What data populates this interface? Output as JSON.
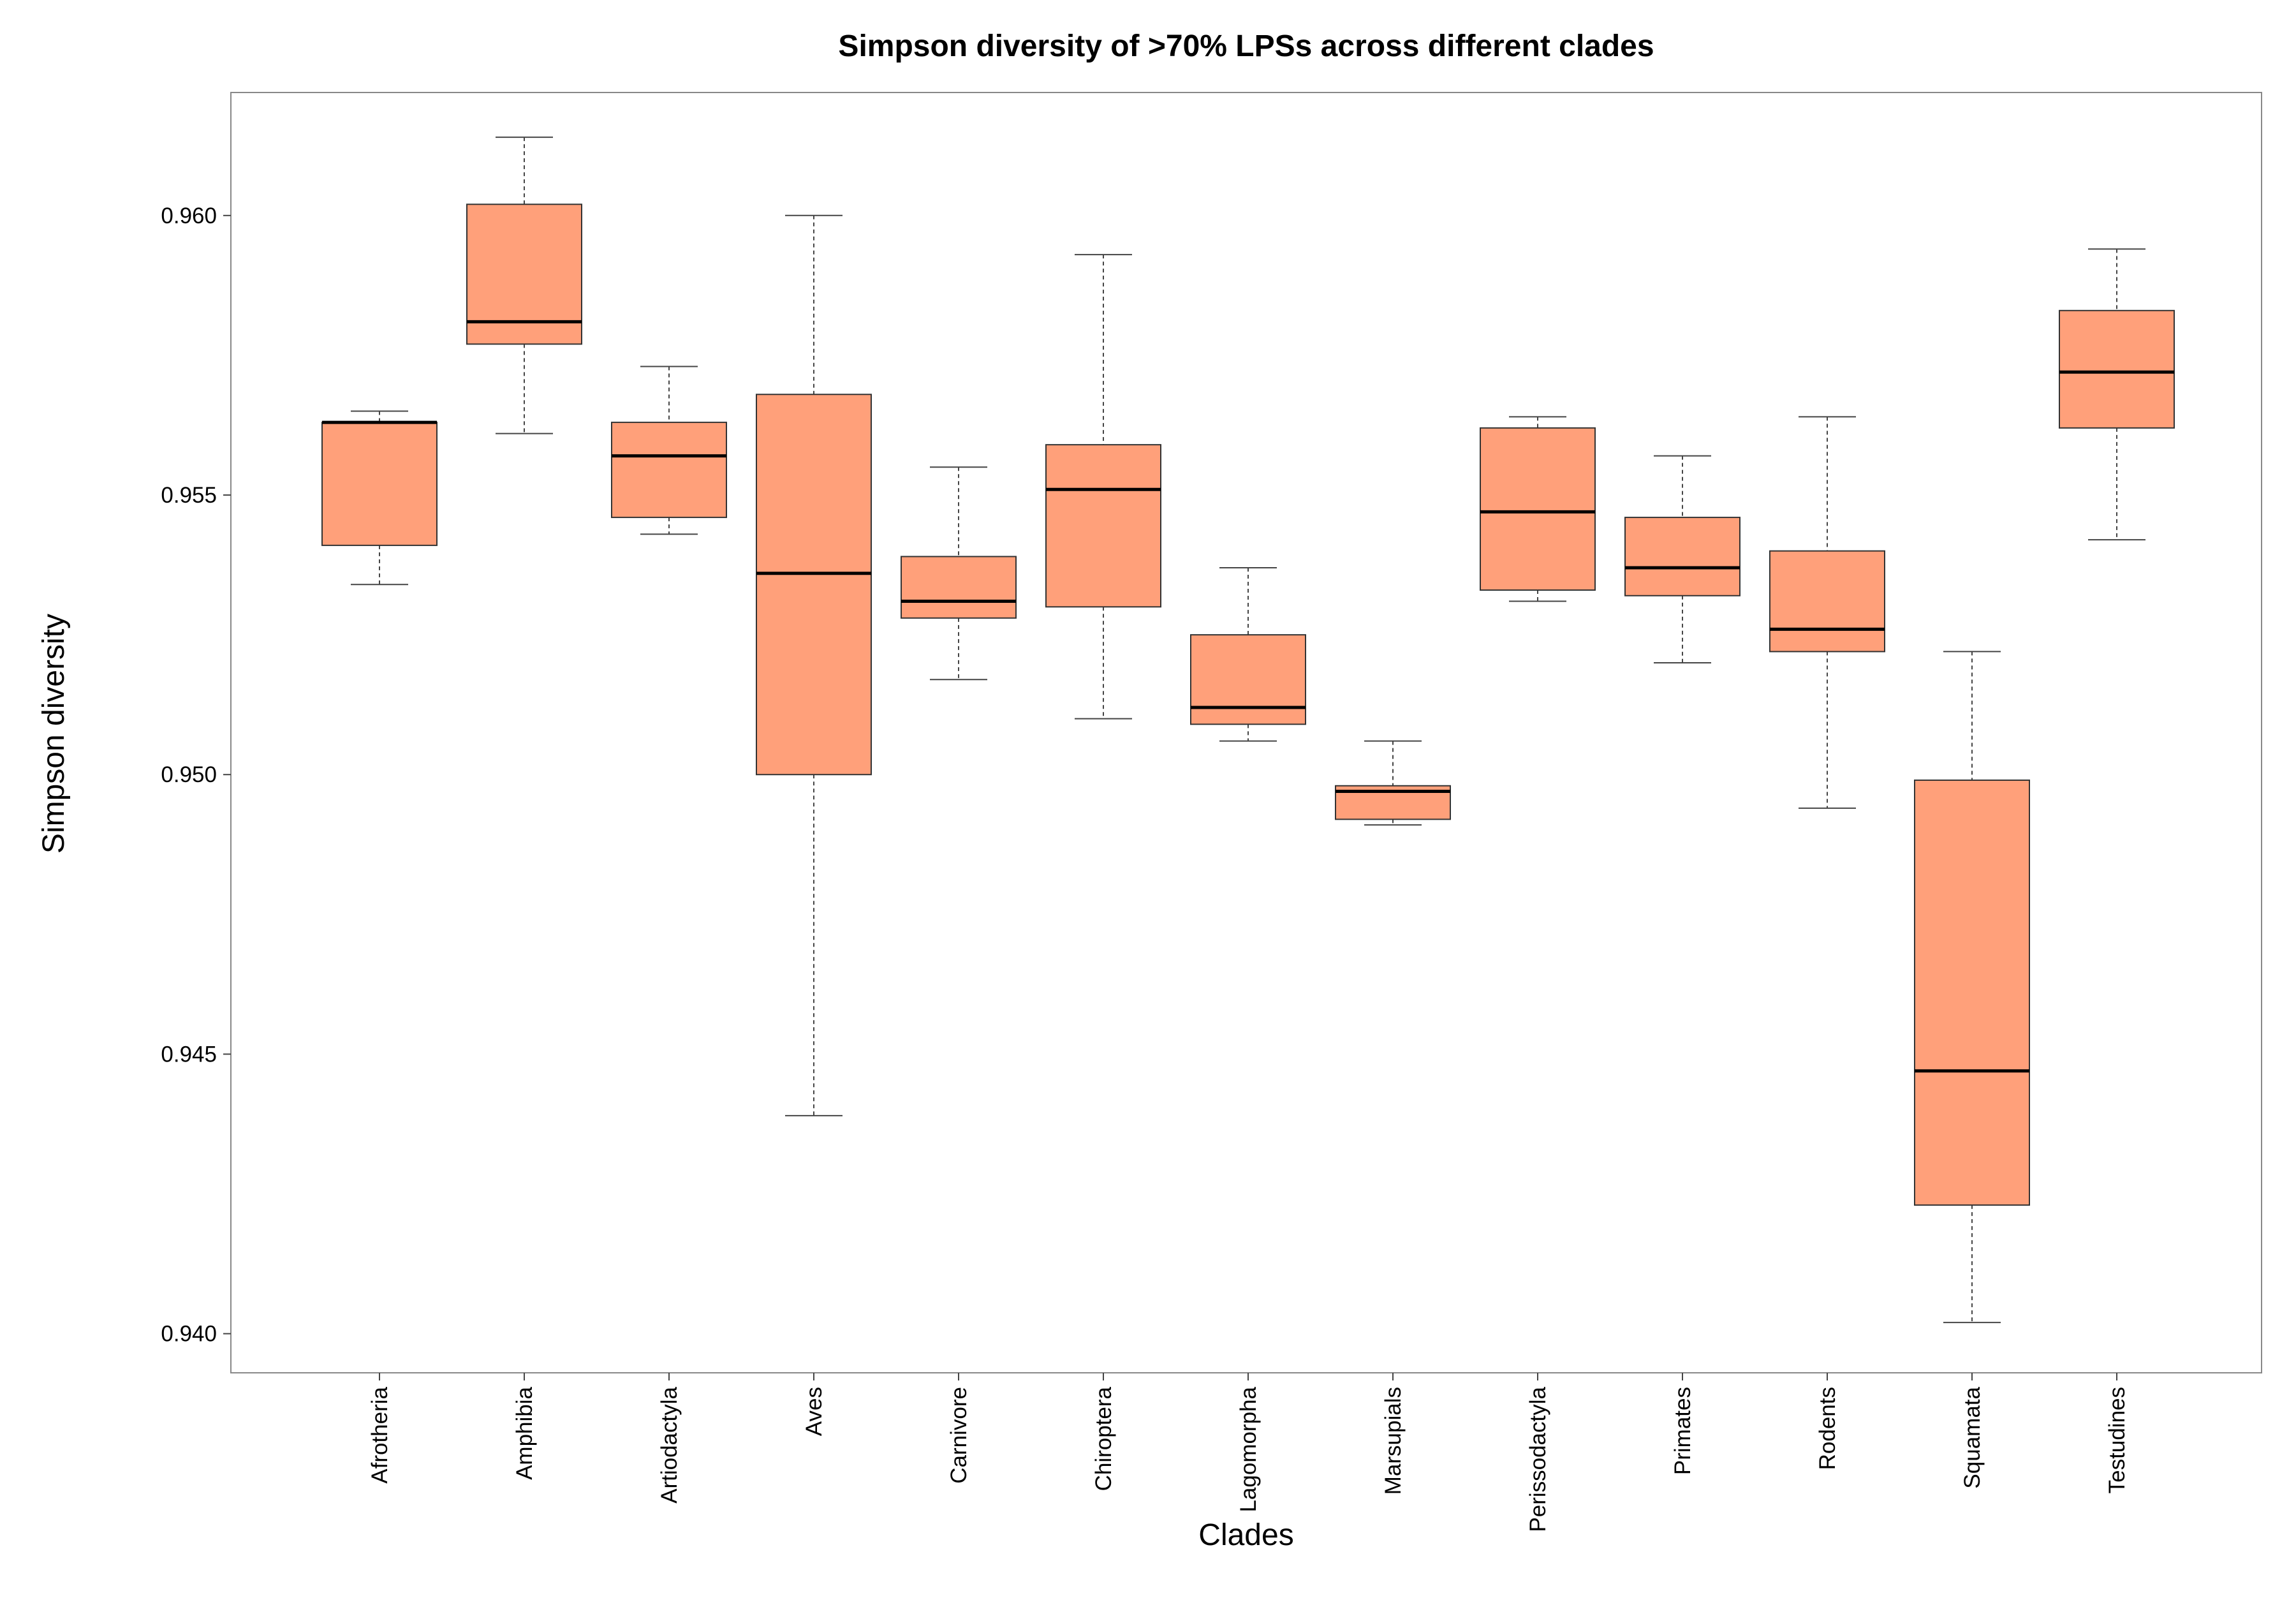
{
  "chart_data": {
    "type": "box",
    "title": "Simpson diversity of >70% LPSs across different clades",
    "xlabel": "Clades",
    "ylabel": "Simpson diversity",
    "ylim": [
      0.9393,
      0.9622
    ],
    "yticks": [
      0.94,
      0.945,
      0.95,
      0.955,
      0.96
    ],
    "ytick_labels": [
      "0.940",
      "0.945",
      "0.950",
      "0.955",
      "0.960"
    ],
    "grid": false,
    "colors": {
      "box_fill": "#FFA07A",
      "box_stroke": "#333333",
      "median": "#000000",
      "whisker": "#444444",
      "panel_border": "#888888"
    },
    "categories": [
      "Afrotheria",
      "Amphibia",
      "Artiodactyla",
      "Aves",
      "Carnivore",
      "Chiroptera",
      "Lagomorpha",
      "Marsupials",
      "Perissodactyla",
      "Primates",
      "Rodents",
      "Squamata",
      "Testudines"
    ],
    "boxes": [
      {
        "category": "Afrotheria",
        "whisker_low": 0.9534,
        "q1": 0.9541,
        "median": 0.9563,
        "q3": 0.9563,
        "whisker_high": 0.9565
      },
      {
        "category": "Amphibia",
        "whisker_low": 0.9561,
        "q1": 0.9577,
        "median": 0.9581,
        "q3": 0.9602,
        "whisker_high": 0.9614
      },
      {
        "category": "Artiodactyla",
        "whisker_low": 0.9543,
        "q1": 0.9546,
        "median": 0.9557,
        "q3": 0.9563,
        "whisker_high": 0.9573
      },
      {
        "category": "Aves",
        "whisker_low": 0.9439,
        "q1": 0.95,
        "median": 0.9536,
        "q3": 0.9568,
        "whisker_high": 0.96
      },
      {
        "category": "Carnivore",
        "whisker_low": 0.9517,
        "q1": 0.9528,
        "median": 0.9531,
        "q3": 0.9539,
        "whisker_high": 0.9555
      },
      {
        "category": "Chiroptera",
        "whisker_low": 0.951,
        "q1": 0.953,
        "median": 0.9551,
        "q3": 0.9559,
        "whisker_high": 0.9593
      },
      {
        "category": "Lagomorpha",
        "whisker_low": 0.9506,
        "q1": 0.9509,
        "median": 0.9512,
        "q3": 0.9525,
        "whisker_high": 0.9537
      },
      {
        "category": "Marsupials",
        "whisker_low": 0.9491,
        "q1": 0.9492,
        "median": 0.9497,
        "q3": 0.9498,
        "whisker_high": 0.9506
      },
      {
        "category": "Perissodactyla",
        "whisker_low": 0.9531,
        "q1": 0.9533,
        "median": 0.9547,
        "q3": 0.9562,
        "whisker_high": 0.9564
      },
      {
        "category": "Primates",
        "whisker_low": 0.952,
        "q1": 0.9532,
        "median": 0.9537,
        "q3": 0.9546,
        "whisker_high": 0.9557
      },
      {
        "category": "Rodents",
        "whisker_low": 0.9494,
        "q1": 0.9522,
        "median": 0.9526,
        "q3": 0.954,
        "whisker_high": 0.9564
      },
      {
        "category": "Squamata",
        "whisker_low": 0.9402,
        "q1": 0.9423,
        "median": 0.9447,
        "q3": 0.9499,
        "whisker_high": 0.9522
      },
      {
        "category": "Testudines",
        "whisker_low": 0.9542,
        "q1": 0.9562,
        "median": 0.9572,
        "q3": 0.9583,
        "whisker_high": 0.9594
      }
    ]
  }
}
